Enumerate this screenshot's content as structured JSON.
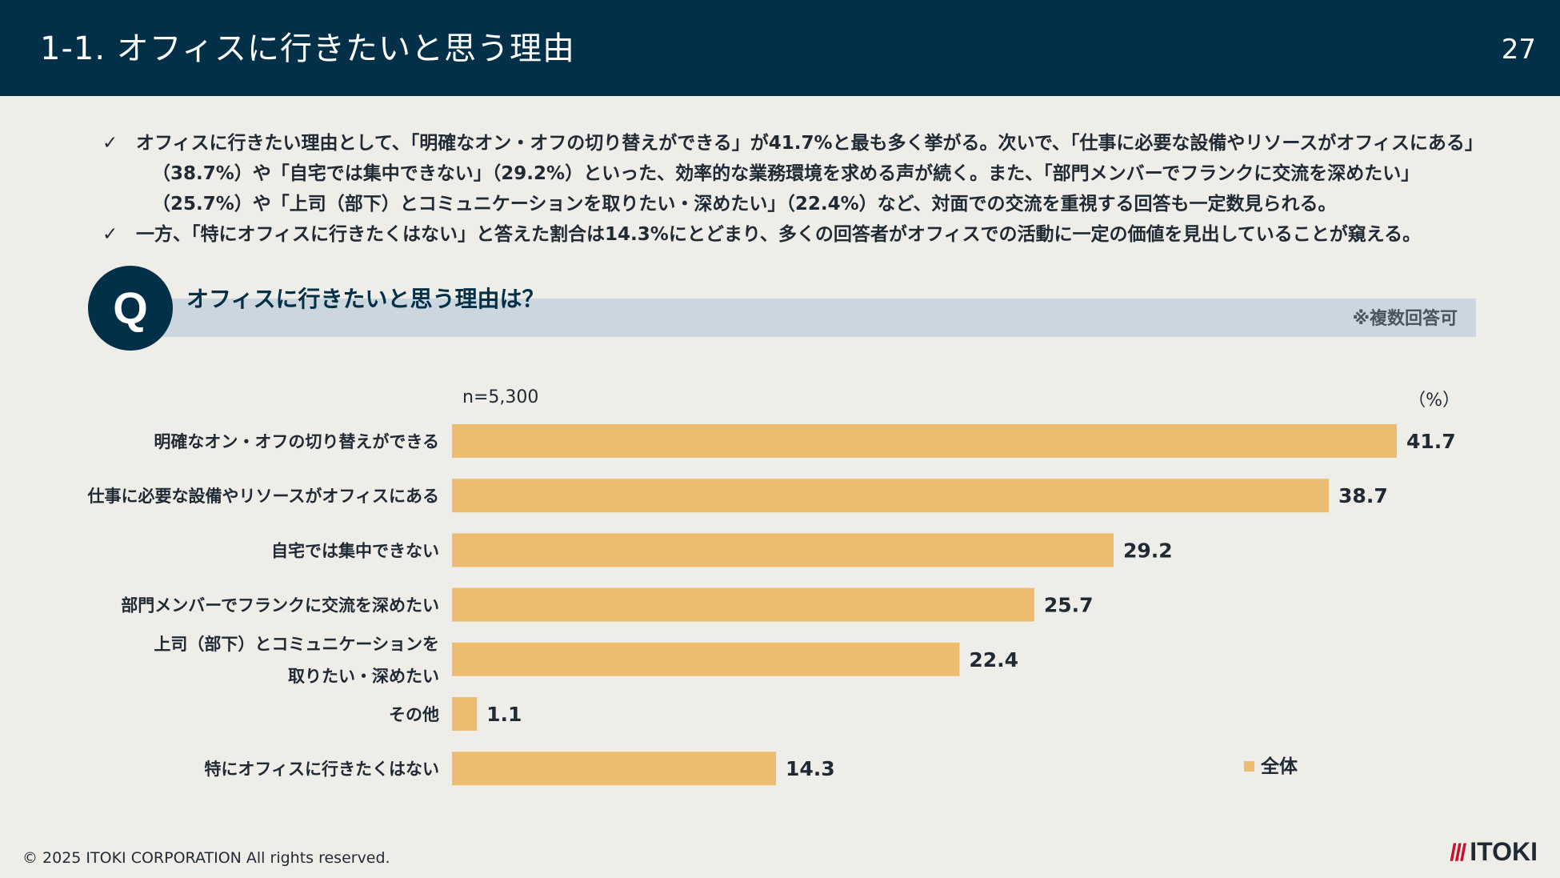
{
  "header": {
    "title": "1-1. オフィスに行きたいと思う理由",
    "page_number": "27"
  },
  "bullets": [
    {
      "check": "✓",
      "lines": [
        "オフィスに行きたい理由として、「明確なオン・オフの切り替えができる」が41.7%と最も多く挙がる。次いで、「仕事に必要な設備やリソースがオフィスにある」",
        "（38.7%）や「自宅では集中できない」（29.2%）といった、効率的な業務環境を求める声が続く。また、「部門メンバーでフランクに交流を深めたい」",
        "（25.7%）や「上司（部下）とコミュニケーションを取りたい・深めたい」（22.4%）など、対面での交流を重視する回答も一定数見られる。"
      ]
    },
    {
      "check": "✓",
      "lines": [
        "一方、「特にオフィスに行きたくはない」と答えた割合は14.3%にとどまり、多くの回答者がオフィスでの活動に一定の価値を見出していることが窺える。"
      ]
    }
  ],
  "question": {
    "badge": "Q",
    "title": "オフィスに行きたいと思う理由は？",
    "note": "※複数回答可"
  },
  "chart_data": {
    "type": "bar",
    "orientation": "horizontal",
    "sample_size": "n=5,300",
    "unit": "（%）",
    "categories": [
      [
        "明確なオン・オフの切り替えができる"
      ],
      [
        "仕事に必要な設備やリソースがオフィスにある"
      ],
      [
        "自宅では集中できない"
      ],
      [
        "部門メンバーでフランクに交流を深めたい"
      ],
      [
        "上司（部下）とコミュニケーションを",
        "取りたい・深めたい"
      ],
      [
        "その他"
      ],
      [
        "特にオフィスに行きたくはない"
      ]
    ],
    "series": [
      {
        "name": "全体",
        "color": "#ECBD70",
        "values": [
          41.7,
          38.7,
          29.2,
          25.7,
          22.4,
          1.1,
          14.3
        ]
      }
    ],
    "xlim": [
      0,
      41.7
    ]
  },
  "legend": {
    "label": "全体"
  },
  "footer": {
    "copyright": "© 2025 ITOKI CORPORATION All rights reserved.",
    "logo_mark": "///",
    "logo_text": "ITOKI"
  }
}
